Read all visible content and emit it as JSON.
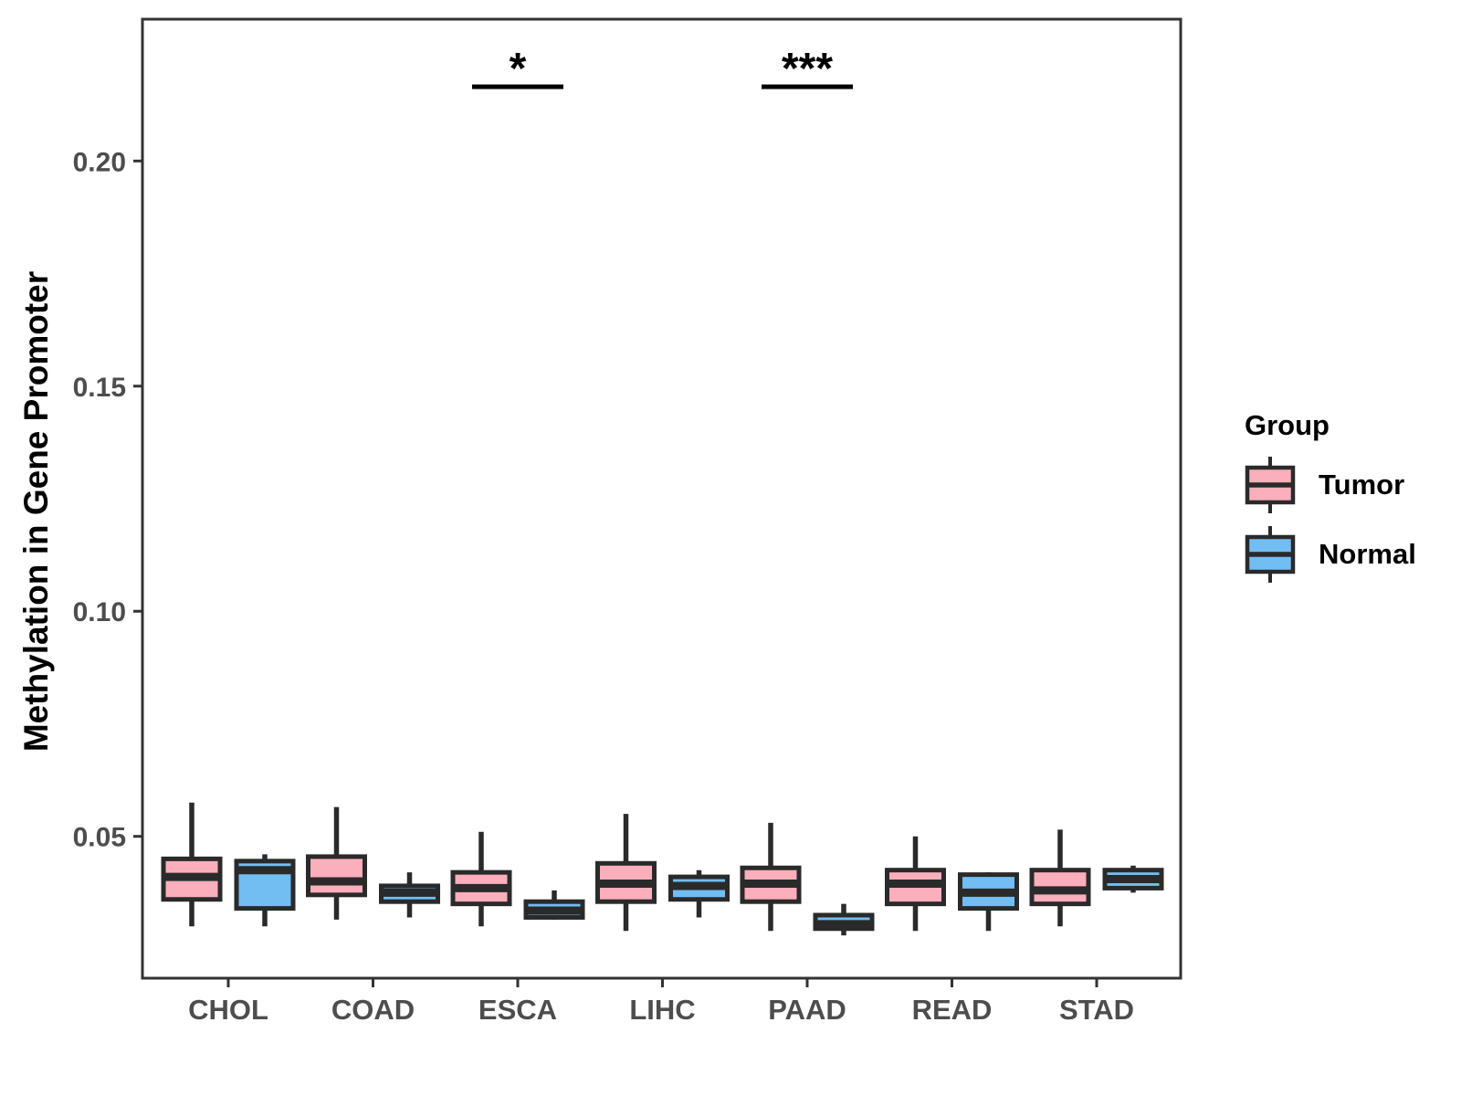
{
  "chart_data": {
    "type": "boxplot",
    "title": "",
    "ylabel": "Methylation in Gene Promoter",
    "xlabel": "",
    "categories": [
      "CHOL",
      "COAD",
      "ESCA",
      "LIHC",
      "PAAD",
      "READ",
      "STAD"
    ],
    "yticks": {
      "values": [
        0.05,
        0.1,
        0.15,
        0.2
      ],
      "labels": [
        "0.05",
        "0.10",
        "0.15",
        "0.20"
      ]
    },
    "ylim": [
      0.0185,
      0.2315
    ],
    "grid": false,
    "legend": {
      "title": "Group",
      "position": "right"
    },
    "series": [
      {
        "name": "Tumor",
        "fill": "#FBAEBB",
        "boxes": [
          {
            "category": "CHOL",
            "whisker_low": 0.03,
            "q1": 0.036,
            "median": 0.041,
            "q3": 0.045,
            "whisker_high": 0.0575
          },
          {
            "category": "COAD",
            "whisker_low": 0.0315,
            "q1": 0.037,
            "median": 0.04,
            "q3": 0.0455,
            "whisker_high": 0.0565
          },
          {
            "category": "ESCA",
            "whisker_low": 0.03,
            "q1": 0.035,
            "median": 0.0385,
            "q3": 0.042,
            "whisker_high": 0.051
          },
          {
            "category": "LIHC",
            "whisker_low": 0.029,
            "q1": 0.0355,
            "median": 0.0395,
            "q3": 0.044,
            "whisker_high": 0.055
          },
          {
            "category": "PAAD",
            "whisker_low": 0.029,
            "q1": 0.0355,
            "median": 0.0395,
            "q3": 0.043,
            "whisker_high": 0.053
          },
          {
            "category": "READ",
            "whisker_low": 0.029,
            "q1": 0.035,
            "median": 0.0395,
            "q3": 0.0425,
            "whisker_high": 0.05
          },
          {
            "category": "STAD",
            "whisker_low": 0.03,
            "q1": 0.035,
            "median": 0.038,
            "q3": 0.0425,
            "whisker_high": 0.0515
          }
        ]
      },
      {
        "name": "Normal",
        "fill": "#72BDF2",
        "boxes": [
          {
            "category": "CHOL",
            "whisker_low": 0.03,
            "q1": 0.034,
            "median": 0.0425,
            "q3": 0.0445,
            "whisker_high": 0.046
          },
          {
            "category": "COAD",
            "whisker_low": 0.032,
            "q1": 0.0355,
            "median": 0.0375,
            "q3": 0.039,
            "whisker_high": 0.042
          },
          {
            "category": "ESCA",
            "whisker_low": 0.0315,
            "q1": 0.032,
            "median": 0.0335,
            "q3": 0.0355,
            "whisker_high": 0.038
          },
          {
            "category": "LIHC",
            "whisker_low": 0.032,
            "q1": 0.036,
            "median": 0.039,
            "q3": 0.041,
            "whisker_high": 0.0425
          },
          {
            "category": "PAAD",
            "whisker_low": 0.028,
            "q1": 0.0295,
            "median": 0.0305,
            "q3": 0.0325,
            "whisker_high": 0.035
          },
          {
            "category": "READ",
            "whisker_low": 0.029,
            "q1": 0.034,
            "median": 0.0375,
            "q3": 0.0415,
            "whisker_high": 0.042
          },
          {
            "category": "STAD",
            "whisker_low": 0.0375,
            "q1": 0.0385,
            "median": 0.0405,
            "q3": 0.0425,
            "whisker_high": 0.0435
          }
        ]
      }
    ],
    "significance": [
      {
        "category": "ESCA",
        "label": "*",
        "bar_y": 0.2165
      },
      {
        "category": "PAAD",
        "label": "***",
        "bar_y": 0.2165
      }
    ],
    "colors": {
      "tumor_fill": "#FBAEBB",
      "normal_fill": "#72BDF2",
      "box_border": "#2a2a2a",
      "panel_border": "#333333",
      "tick_text": "#4d4d4d",
      "title_text": "#000000"
    }
  }
}
